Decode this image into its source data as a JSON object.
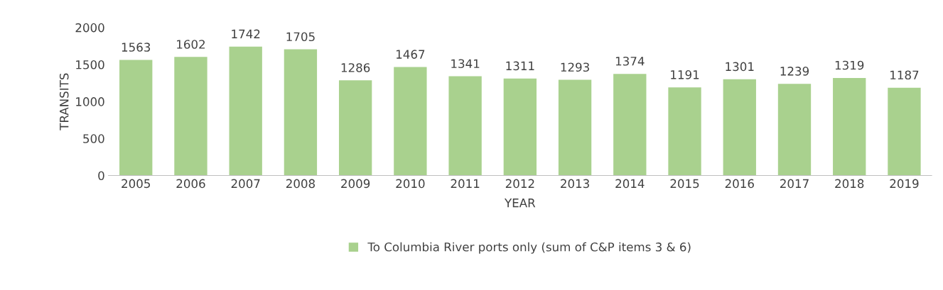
{
  "chart_data": {
    "type": "bar",
    "xlabel": "YEAR",
    "ylabel": "TRANSITS",
    "categories": [
      "2005",
      "2006",
      "2007",
      "2008",
      "2009",
      "2010",
      "2011",
      "2012",
      "2013",
      "2014",
      "2015",
      "2016",
      "2017",
      "2018",
      "2019"
    ],
    "series": [
      {
        "name": "To Columbia River ports only (sum of C&P items 3 & 6)",
        "color": "#a9d18e",
        "values": [
          1563,
          1602,
          1742,
          1705,
          1286,
          1467,
          1341,
          1311,
          1293,
          1374,
          1191,
          1301,
          1239,
          1319,
          1187
        ]
      }
    ],
    "ylim": [
      0,
      2000
    ],
    "yticks": [
      0,
      500,
      1000,
      1500,
      2000
    ],
    "grid": false,
    "legend": "bottom",
    "data_labels": true
  }
}
